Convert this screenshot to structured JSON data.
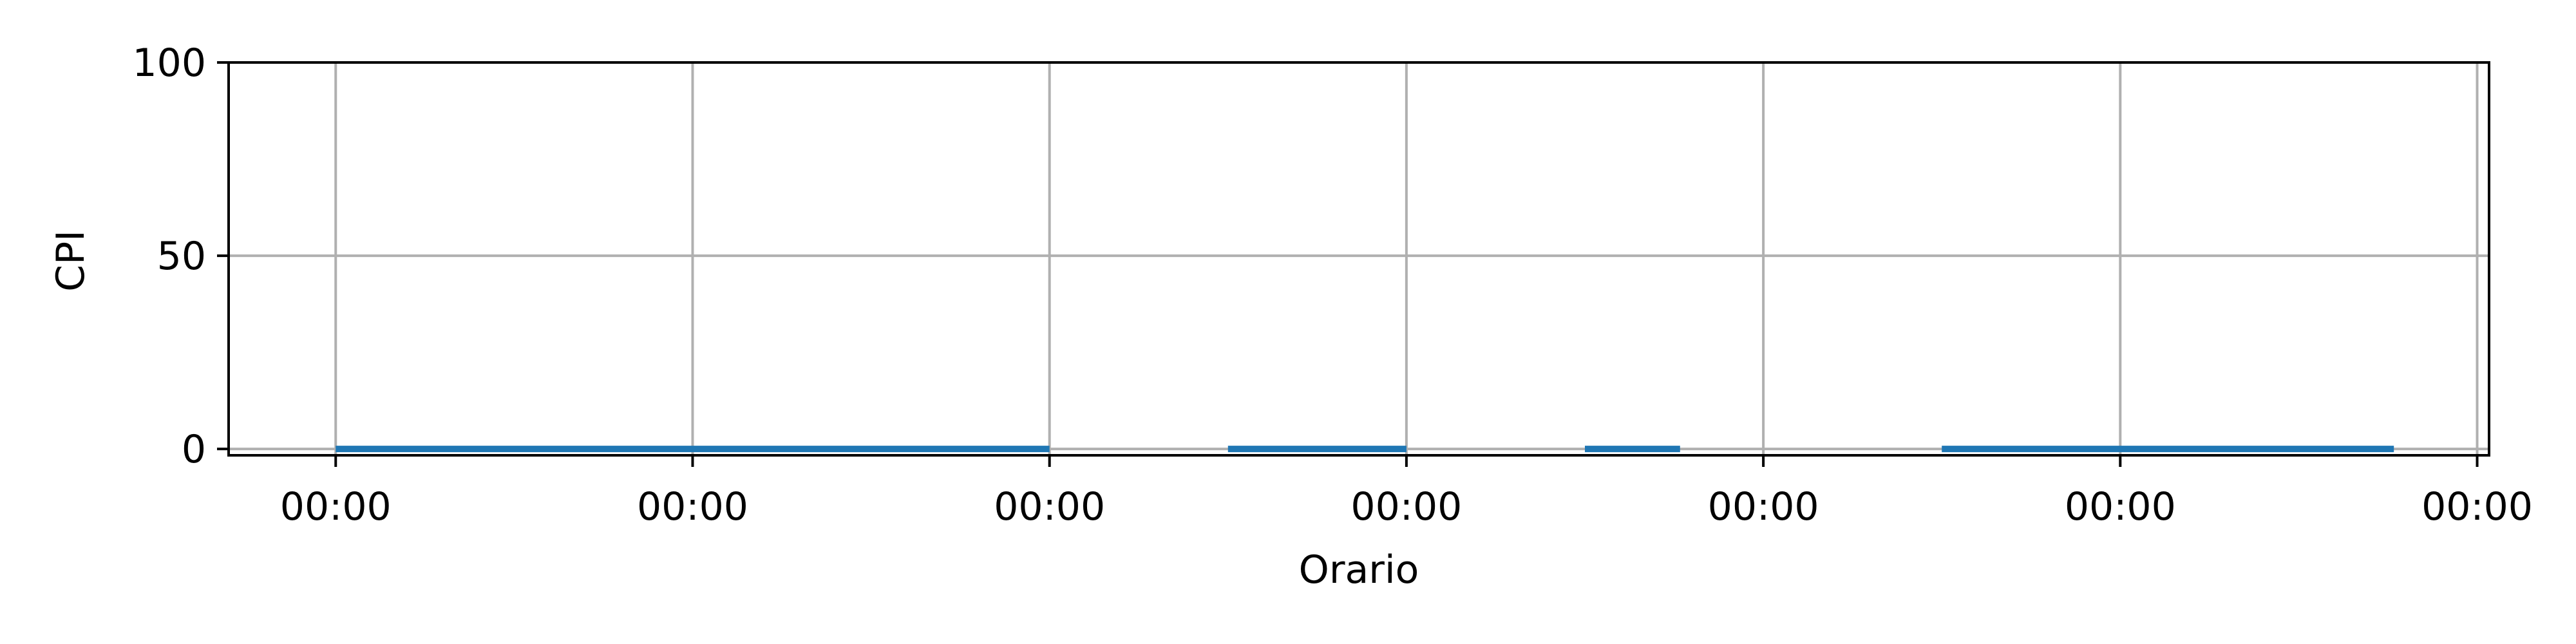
{
  "chart_data": {
    "type": "line",
    "title": "",
    "xlabel": "Orario",
    "ylabel": "CPI",
    "ylim": [
      0,
      100
    ],
    "yticks": [
      0,
      50,
      100
    ],
    "x_tick_labels": [
      "00:00",
      "00:00",
      "00:00",
      "00:00",
      "00:00",
      "00:00",
      "00:00"
    ],
    "grid": true,
    "series_color": "#1f77b4",
    "series": [
      {
        "segments": [
          {
            "x": [
              0,
              6
            ],
            "y": [
              0,
              0
            ]
          },
          {
            "x": [
              7.5,
              9
            ],
            "y": [
              0,
              0
            ]
          },
          {
            "x": [
              10.5,
              11.3
            ],
            "y": [
              0,
              0
            ]
          },
          {
            "x": [
              13.5,
              17.3
            ],
            "y": [
              0,
              0
            ]
          }
        ]
      }
    ],
    "xlim": [
      -0.9,
      18.1
    ],
    "x_tick_positions": [
      0,
      3,
      6,
      9,
      12,
      15,
      18
    ]
  }
}
